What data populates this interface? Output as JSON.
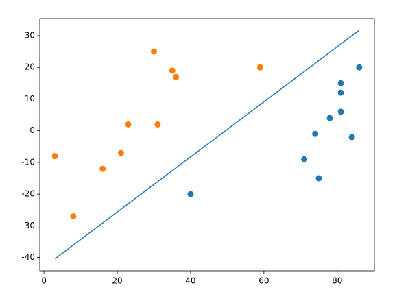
{
  "chart_data": {
    "type": "scatter",
    "xlim": [
      -1.15,
      90.15
    ],
    "ylim": [
      -44.2,
      35.4
    ],
    "xticks": [
      0,
      20,
      40,
      60,
      80
    ],
    "yticks": [
      -40,
      -30,
      -20,
      -10,
      0,
      10,
      20,
      30
    ],
    "series": [
      {
        "color": "#1f77b4",
        "x": [
          40,
          71,
          74,
          75,
          78,
          81,
          81,
          81,
          84,
          86
        ],
        "y": [
          -20,
          -9,
          -1,
          -15,
          4,
          6,
          12,
          15,
          -2,
          20
        ]
      },
      {
        "color": "#ff7f0e",
        "x": [
          3,
          8,
          16,
          21,
          23,
          30,
          31,
          35,
          36,
          59
        ],
        "y": [
          -8,
          -27,
          -12,
          -7,
          2,
          25,
          2,
          19,
          17,
          20
        ]
      }
    ],
    "lines": [
      {
        "color": "#1f77b4",
        "x": [
          3,
          86
        ],
        "y": [
          -40.4,
          31.7
        ]
      }
    ]
  }
}
